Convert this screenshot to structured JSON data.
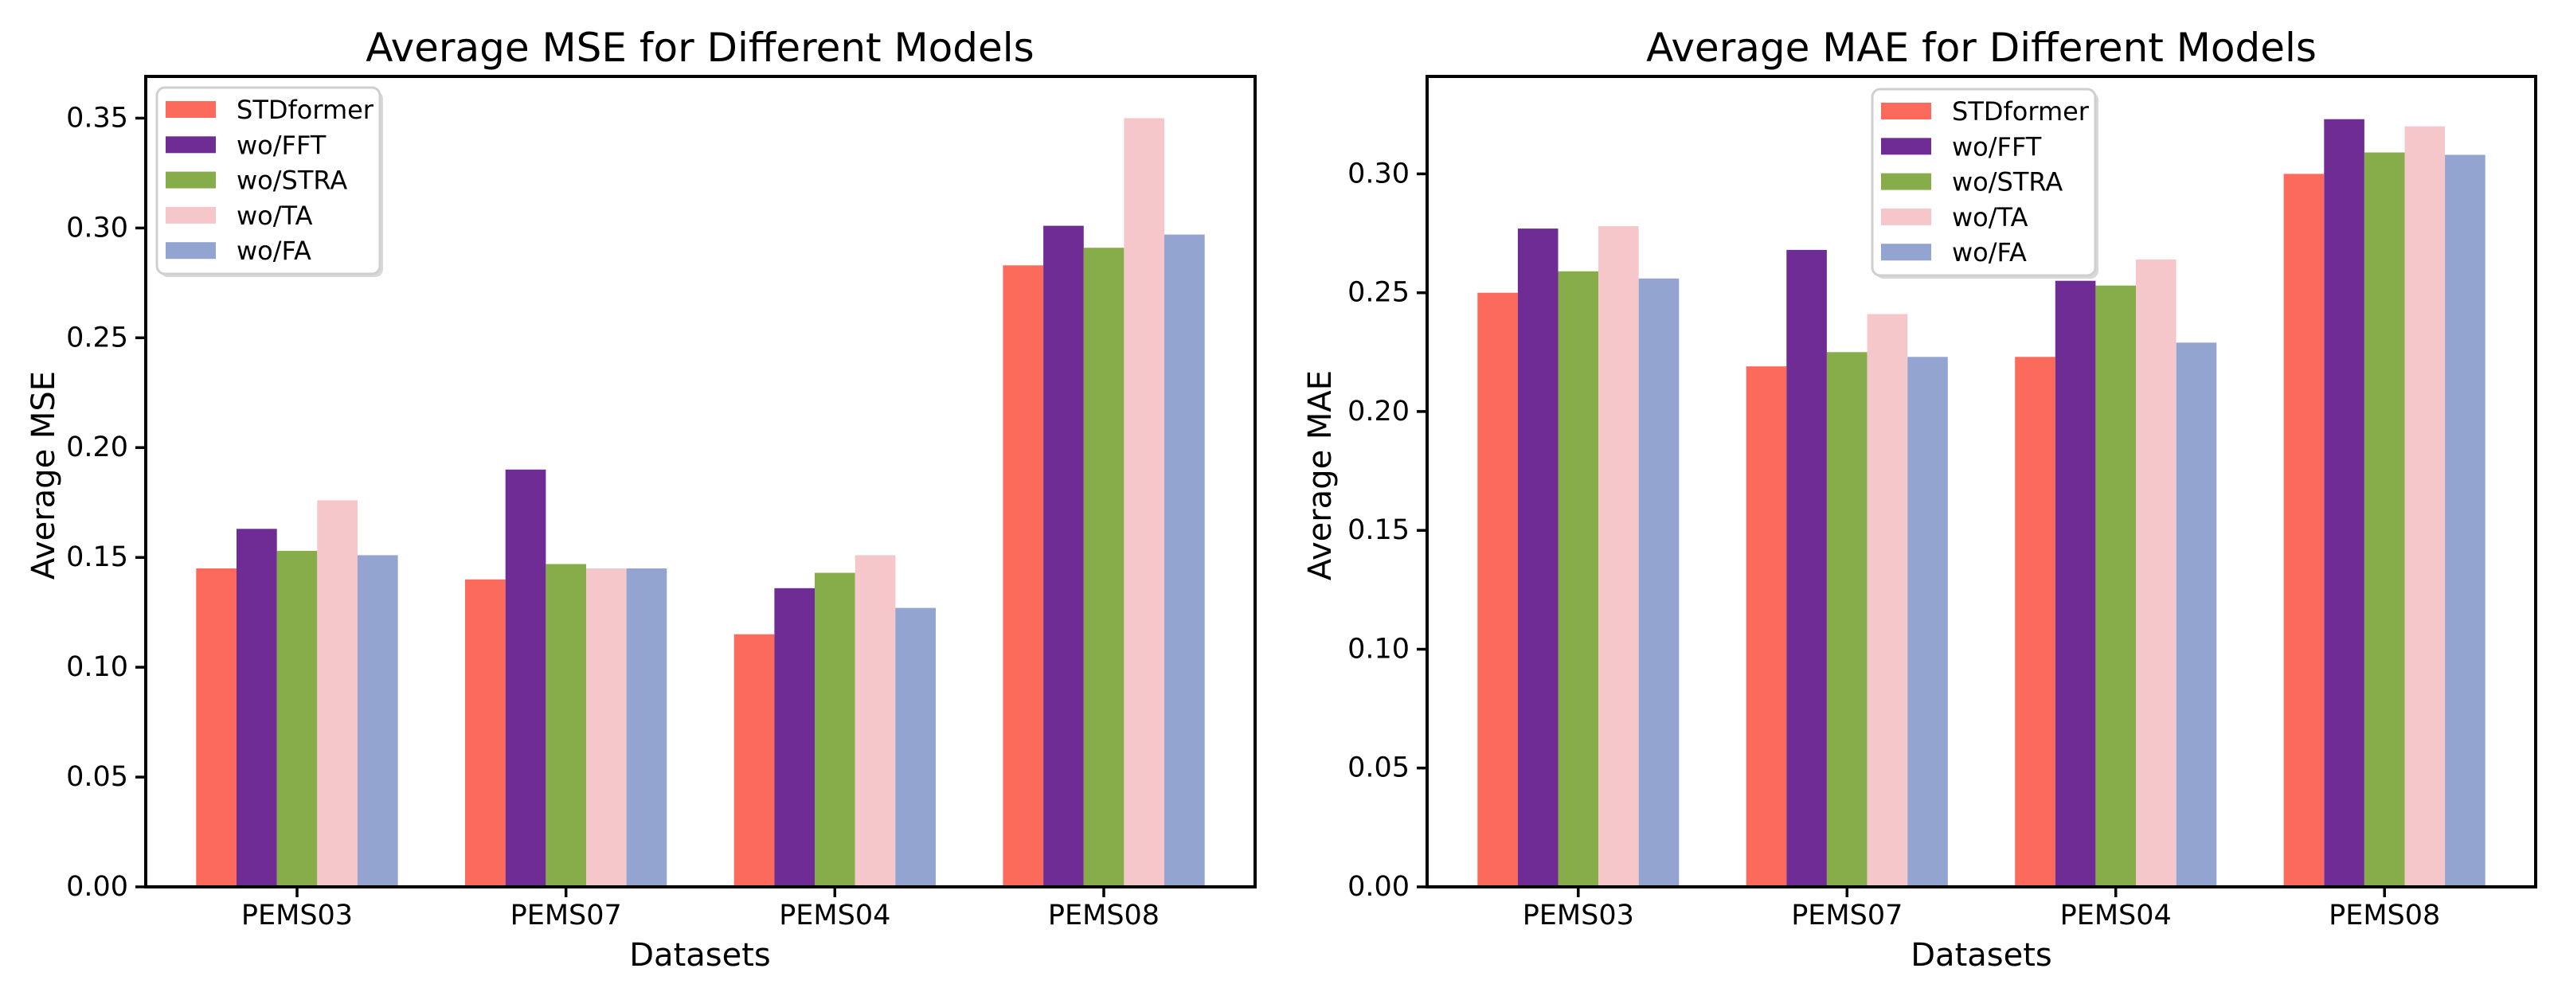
{
  "figure": {
    "background": "#FFFFFF",
    "text_color": "#000000"
  },
  "chart_data": [
    {
      "type": "bar",
      "title": "Average MSE for Different Models",
      "xlabel": "Datasets",
      "ylabel": "Average MSE",
      "categories": [
        "PEMS03",
        "PEMS07",
        "PEMS04",
        "PEMS08"
      ],
      "series": [
        {
          "name": "STDformer",
          "color": "#FC6A5C",
          "values": [
            0.145,
            0.14,
            0.115,
            0.283
          ]
        },
        {
          "name": "wo/FFT",
          "color": "#6E2C94",
          "values": [
            0.163,
            0.19,
            0.136,
            0.301
          ]
        },
        {
          "name": "wo/STRA",
          "color": "#87AD4B",
          "values": [
            0.153,
            0.147,
            0.143,
            0.291
          ]
        },
        {
          "name": "wo/TA",
          "color": "#F6C7CA",
          "values": [
            0.176,
            0.145,
            0.151,
            0.35
          ]
        },
        {
          "name": "wo/FA",
          "color": "#93A4D1",
          "values": [
            0.151,
            0.145,
            0.127,
            0.297
          ]
        }
      ],
      "yticks": [
        "0.00",
        "0.05",
        "0.10",
        "0.15",
        "0.20",
        "0.25",
        "0.30",
        "0.35"
      ],
      "ylim": [
        0,
        0.369
      ],
      "grid": false,
      "legend_position": "upper left"
    },
    {
      "type": "bar",
      "title": "Average MAE for Different Models",
      "xlabel": "Datasets",
      "ylabel": "Average MAE",
      "categories": [
        "PEMS03",
        "PEMS07",
        "PEMS04",
        "PEMS08"
      ],
      "series": [
        {
          "name": "STDformer",
          "color": "#FC6A5C",
          "values": [
            0.25,
            0.219,
            0.223,
            0.3
          ]
        },
        {
          "name": "wo/FFT",
          "color": "#6E2C94",
          "values": [
            0.277,
            0.268,
            0.255,
            0.323
          ]
        },
        {
          "name": "wo/STRA",
          "color": "#87AD4B",
          "values": [
            0.259,
            0.225,
            0.253,
            0.309
          ]
        },
        {
          "name": "wo/TA",
          "color": "#F6C7CA",
          "values": [
            0.278,
            0.241,
            0.264,
            0.32
          ]
        },
        {
          "name": "wo/FA",
          "color": "#93A4D1",
          "values": [
            0.256,
            0.223,
            0.229,
            0.308
          ]
        }
      ],
      "yticks": [
        "0.00",
        "0.05",
        "0.10",
        "0.15",
        "0.20",
        "0.25",
        "0.30"
      ],
      "ylim": [
        0,
        0.341
      ],
      "grid": false,
      "legend_position": "upper center-left"
    }
  ]
}
